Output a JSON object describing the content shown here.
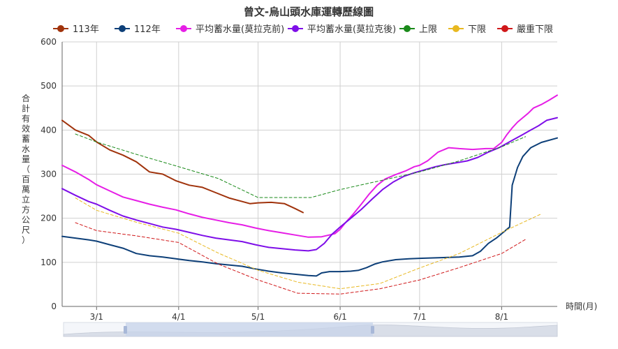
{
  "chart_data": {
    "type": "line",
    "title": "曾文-烏山頭水庫運轉歷線圖",
    "xlabel": "時間(月)",
    "ylabel": "合計有效蓄水量（百萬立方公尺）",
    "ylim": [
      0,
      600
    ],
    "yticks": [
      0,
      100,
      200,
      300,
      400,
      500,
      600
    ],
    "xlim": [
      "02-17",
      "08-22"
    ],
    "xticks": [
      {
        "date": "03-01",
        "label": "3/1"
      },
      {
        "date": "04-01",
        "label": "4/1"
      },
      {
        "date": "05-01",
        "label": "5/1"
      },
      {
        "date": "06-01",
        "label": "6/1"
      },
      {
        "date": "07-01",
        "label": "7/1"
      },
      {
        "date": "08-01",
        "label": "8/1"
      }
    ],
    "grid": "vertical-major, horizontal-major",
    "legend_position": "top",
    "series": [
      {
        "name": "113年",
        "color": "#a0330c",
        "style": "solid",
        "width": 2,
        "points": [
          [
            "02-17",
            422
          ],
          [
            "02-22",
            400
          ],
          [
            "02-27",
            388
          ],
          [
            "03-01",
            373
          ],
          [
            "03-06",
            355
          ],
          [
            "03-11",
            343
          ],
          [
            "03-16",
            328
          ],
          [
            "03-21",
            305
          ],
          [
            "03-26",
            300
          ],
          [
            "03-31",
            285
          ],
          [
            "04-05",
            275
          ],
          [
            "04-10",
            270
          ],
          [
            "04-15",
            258
          ],
          [
            "04-20",
            246
          ],
          [
            "04-25",
            238
          ],
          [
            "04-28",
            233
          ],
          [
            "05-01",
            235
          ],
          [
            "05-06",
            236
          ],
          [
            "05-11",
            233
          ],
          [
            "05-15",
            222
          ],
          [
            "05-18",
            213
          ]
        ]
      },
      {
        "name": "112年",
        "color": "#0d3f78",
        "style": "solid",
        "width": 2,
        "points": [
          [
            "02-17",
            159
          ],
          [
            "02-22",
            155
          ],
          [
            "02-27",
            151
          ],
          [
            "03-01",
            148
          ],
          [
            "03-06",
            140
          ],
          [
            "03-11",
            132
          ],
          [
            "03-16",
            120
          ],
          [
            "03-21",
            115
          ],
          [
            "03-26",
            112
          ],
          [
            "03-31",
            108
          ],
          [
            "04-05",
            104
          ],
          [
            "04-10",
            101
          ],
          [
            "04-15",
            97
          ],
          [
            "04-20",
            94
          ],
          [
            "04-25",
            91
          ],
          [
            "04-30",
            85
          ],
          [
            "05-05",
            80
          ],
          [
            "05-10",
            76
          ],
          [
            "05-15",
            73
          ],
          [
            "05-20",
            70
          ],
          [
            "05-23",
            69
          ],
          [
            "05-25",
            76
          ],
          [
            "05-28",
            79
          ],
          [
            "06-01",
            79
          ],
          [
            "06-05",
            80
          ],
          [
            "06-08",
            82
          ],
          [
            "06-11",
            88
          ],
          [
            "06-14",
            96
          ],
          [
            "06-17",
            101
          ],
          [
            "06-22",
            106
          ],
          [
            "06-27",
            108
          ],
          [
            "07-01",
            109
          ],
          [
            "07-06",
            110
          ],
          [
            "07-11",
            111
          ],
          [
            "07-16",
            112
          ],
          [
            "07-21",
            115
          ],
          [
            "07-24",
            125
          ],
          [
            "07-27",
            143
          ],
          [
            "07-30",
            155
          ],
          [
            "08-02",
            170
          ],
          [
            "08-04",
            180
          ],
          [
            "08-05",
            275
          ],
          [
            "08-07",
            315
          ],
          [
            "08-09",
            340
          ],
          [
            "08-12",
            360
          ],
          [
            "08-16",
            372
          ],
          [
            "08-22",
            382
          ]
        ]
      },
      {
        "name": "平均蓄水量(莫拉克前)",
        "color": "#e61ee6",
        "style": "solid",
        "width": 2,
        "points": [
          [
            "02-17",
            320
          ],
          [
            "02-22",
            305
          ],
          [
            "02-27",
            288
          ],
          [
            "03-01",
            276
          ],
          [
            "03-06",
            262
          ],
          [
            "03-11",
            248
          ],
          [
            "03-16",
            240
          ],
          [
            "03-21",
            232
          ],
          [
            "03-26",
            225
          ],
          [
            "03-31",
            219
          ],
          [
            "04-05",
            210
          ],
          [
            "04-10",
            202
          ],
          [
            "04-15",
            196
          ],
          [
            "04-20",
            190
          ],
          [
            "04-25",
            185
          ],
          [
            "04-30",
            178
          ],
          [
            "05-05",
            172
          ],
          [
            "05-10",
            167
          ],
          [
            "05-15",
            162
          ],
          [
            "05-20",
            157
          ],
          [
            "05-25",
            158
          ],
          [
            "05-30",
            165
          ],
          [
            "06-01",
            175
          ],
          [
            "06-03",
            190
          ],
          [
            "06-06",
            210
          ],
          [
            "06-09",
            232
          ],
          [
            "06-12",
            255
          ],
          [
            "06-15",
            275
          ],
          [
            "06-18",
            289
          ],
          [
            "06-22",
            299
          ],
          [
            "06-26",
            308
          ],
          [
            "06-29",
            317
          ],
          [
            "07-01",
            320
          ],
          [
            "07-04",
            330
          ],
          [
            "07-08",
            350
          ],
          [
            "07-12",
            360
          ],
          [
            "07-16",
            358
          ],
          [
            "07-21",
            356
          ],
          [
            "07-26",
            358
          ],
          [
            "07-29",
            358
          ],
          [
            "08-01",
            372
          ],
          [
            "08-03",
            390
          ],
          [
            "08-05",
            405
          ],
          [
            "08-07",
            418
          ],
          [
            "08-09",
            428
          ],
          [
            "08-11",
            438
          ],
          [
            "08-13",
            450
          ],
          [
            "08-16",
            458
          ],
          [
            "08-19",
            468
          ],
          [
            "08-22",
            479
          ]
        ]
      },
      {
        "name": "平均蓄水量(莫拉克後)",
        "color": "#7e0ee8",
        "style": "solid",
        "width": 2,
        "points": [
          [
            "02-17",
            267
          ],
          [
            "02-22",
            252
          ],
          [
            "02-27",
            238
          ],
          [
            "03-01",
            232
          ],
          [
            "03-06",
            218
          ],
          [
            "03-11",
            205
          ],
          [
            "03-16",
            196
          ],
          [
            "03-21",
            188
          ],
          [
            "03-26",
            180
          ],
          [
            "03-31",
            175
          ],
          [
            "04-05",
            168
          ],
          [
            "04-10",
            161
          ],
          [
            "04-15",
            155
          ],
          [
            "04-20",
            151
          ],
          [
            "04-25",
            147
          ],
          [
            "04-30",
            140
          ],
          [
            "05-05",
            134
          ],
          [
            "05-10",
            131
          ],
          [
            "05-15",
            128
          ],
          [
            "05-20",
            126
          ],
          [
            "05-23",
            129
          ],
          [
            "05-26",
            143
          ],
          [
            "05-29",
            164
          ],
          [
            "06-01",
            180
          ],
          [
            "06-05",
            200
          ],
          [
            "06-09",
            220
          ],
          [
            "06-13",
            243
          ],
          [
            "06-17",
            265
          ],
          [
            "06-21",
            282
          ],
          [
            "06-25",
            295
          ],
          [
            "06-29",
            303
          ],
          [
            "07-03",
            310
          ],
          [
            "07-07",
            317
          ],
          [
            "07-11",
            322
          ],
          [
            "07-15",
            326
          ],
          [
            "07-19",
            330
          ],
          [
            "07-23",
            338
          ],
          [
            "07-27",
            350
          ],
          [
            "07-31",
            360
          ],
          [
            "08-03",
            370
          ],
          [
            "08-06",
            380
          ],
          [
            "08-09",
            390
          ],
          [
            "08-12",
            400
          ],
          [
            "08-15",
            410
          ],
          [
            "08-18",
            422
          ],
          [
            "08-22",
            428
          ]
        ]
      },
      {
        "name": "上限",
        "color": "#1a8a1a",
        "style": "dashed",
        "width": 1,
        "points": [
          [
            "02-22",
            391
          ],
          [
            "03-01",
            373
          ],
          [
            "03-16",
            345
          ],
          [
            "04-01",
            317
          ],
          [
            "04-16",
            290
          ],
          [
            "05-01",
            247
          ],
          [
            "05-16",
            247
          ],
          [
            "05-21",
            247
          ],
          [
            "06-01",
            265
          ],
          [
            "06-16",
            285
          ],
          [
            "07-01",
            305
          ],
          [
            "07-16",
            330
          ],
          [
            "08-01",
            362
          ],
          [
            "08-10",
            385
          ]
        ]
      },
      {
        "name": "下限",
        "color": "#e8b820",
        "style": "dashed",
        "width": 1,
        "points": [
          [
            "02-22",
            246
          ],
          [
            "03-01",
            218
          ],
          [
            "03-16",
            191
          ],
          [
            "04-01",
            166
          ],
          [
            "04-16",
            121
          ],
          [
            "05-01",
            82
          ],
          [
            "05-16",
            55
          ],
          [
            "06-01",
            40
          ],
          [
            "06-16",
            52
          ],
          [
            "07-01",
            87
          ],
          [
            "07-16",
            120
          ],
          [
            "08-01",
            168
          ],
          [
            "08-16",
            210
          ]
        ]
      },
      {
        "name": "嚴重下限",
        "color": "#d0181a",
        "style": "dashed",
        "width": 1,
        "points": [
          [
            "02-22",
            190
          ],
          [
            "03-01",
            172
          ],
          [
            "03-16",
            160
          ],
          [
            "04-01",
            145
          ],
          [
            "04-16",
            96
          ],
          [
            "05-01",
            60
          ],
          [
            "05-16",
            30
          ],
          [
            "06-01",
            28
          ],
          [
            "06-16",
            40
          ],
          [
            "07-01",
            60
          ],
          [
            "07-16",
            88
          ],
          [
            "08-01",
            120
          ],
          [
            "08-10",
            152
          ]
        ]
      }
    ]
  }
}
